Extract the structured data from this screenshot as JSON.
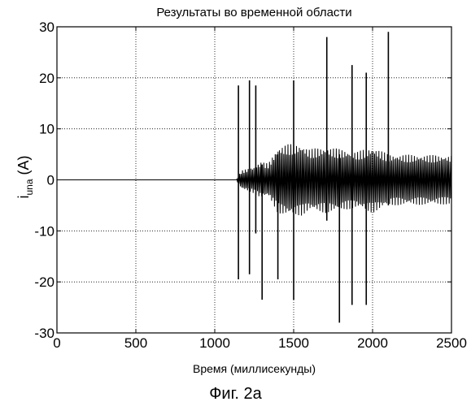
{
  "chart_data": {
    "type": "line",
    "title": "Результаты во временной области",
    "xlabel": "Время (миллисекунды)",
    "ylabel": {
      "main": "i",
      "sub": "una",
      "unit": " (A)"
    },
    "xlim": [
      0,
      2500
    ],
    "ylim": [
      -30,
      30
    ],
    "xticks": [
      0,
      500,
      1000,
      1500,
      2000,
      2500
    ],
    "yticks": [
      -30,
      -20,
      -10,
      0,
      10,
      20,
      30
    ],
    "xtick_labels": [
      "0",
      "500",
      "1000",
      "1500",
      "2000",
      "2500"
    ],
    "ytick_labels": [
      "-30",
      "-20",
      "-10",
      "0",
      "10",
      "20",
      "30"
    ],
    "grid": true,
    "series": [
      {
        "color": "#000000",
        "baseline_until": 1140,
        "envelope": [
          {
            "x": 1140,
            "amp": 0.3
          },
          {
            "x": 1170,
            "amp": 1.8
          },
          {
            "x": 1240,
            "amp": 2.5
          },
          {
            "x": 1290,
            "amp": 3.5
          },
          {
            "x": 1340,
            "amp": 3.2
          },
          {
            "x": 1400,
            "amp": 6.5
          },
          {
            "x": 1460,
            "amp": 7.0
          },
          {
            "x": 1550,
            "amp": 7.0
          },
          {
            "x": 1600,
            "amp": 6.0
          },
          {
            "x": 1700,
            "amp": 6.5
          },
          {
            "x": 1800,
            "amp": 6.0
          },
          {
            "x": 1900,
            "amp": 5.5
          },
          {
            "x": 2000,
            "amp": 6.5
          },
          {
            "x": 2100,
            "amp": 5.0
          },
          {
            "x": 2500,
            "amp": 4.8
          }
        ],
        "spikes": [
          {
            "x": 1150,
            "peak": 18.5,
            "trough": -19.5
          },
          {
            "x": 1220,
            "peak": 19.5,
            "trough": -18.5
          },
          {
            "x": 1260,
            "peak": 18.5,
            "trough": -10.5
          },
          {
            "x": 1300,
            "peak": 3.0,
            "trough": -23.5
          },
          {
            "x": 1400,
            "peak": 5.0,
            "trough": -19.5
          },
          {
            "x": 1500,
            "peak": 19.5,
            "trough": -23.5
          },
          {
            "x": 1710,
            "peak": 28.0,
            "trough": -8.0
          },
          {
            "x": 1790,
            "peak": 5.0,
            "trough": -28.0
          },
          {
            "x": 1870,
            "peak": 22.5,
            "trough": -24.5
          },
          {
            "x": 1960,
            "peak": 21.0,
            "trough": -24.5
          },
          {
            "x": 2100,
            "peak": 29.0,
            "trough": -5.0
          }
        ]
      }
    ]
  },
  "caption": "Фиг. 2а"
}
